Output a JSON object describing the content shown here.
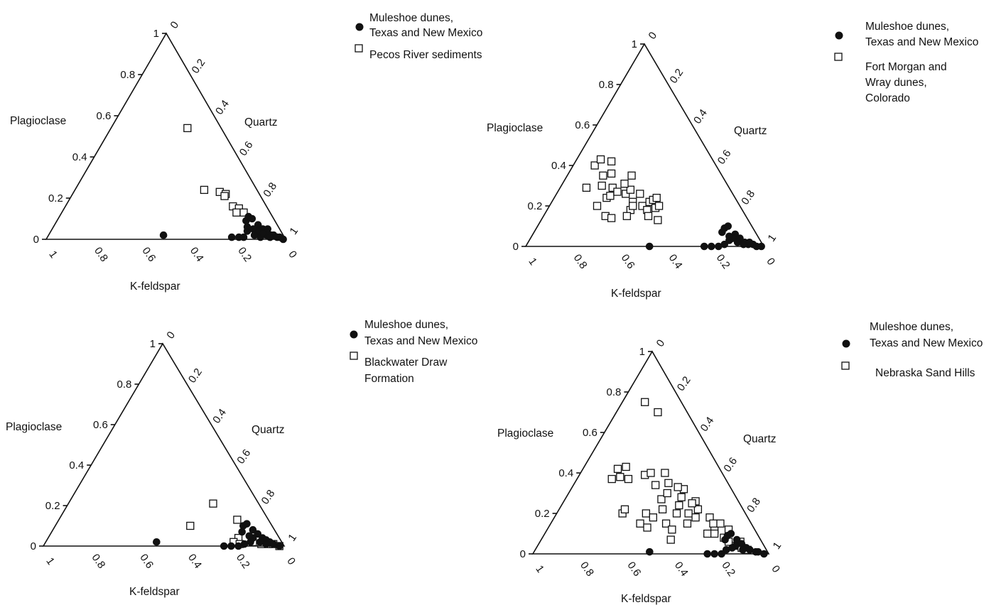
{
  "chart_data": [
    {
      "type": "scatter",
      "subtype": "ternary",
      "axes": {
        "left": {
          "label": "Plagioclase",
          "ticks": [
            "0",
            "0.2",
            "0.4",
            "0.6",
            "0.8",
            "1"
          ]
        },
        "right": {
          "label": "Quartz",
          "ticks": [
            "0",
            "0.2",
            "0.4",
            "0.6",
            "0.8",
            "1"
          ]
        },
        "bottom": {
          "label": "K-feldspar",
          "ticks": [
            "1",
            "0.8",
            "0.6",
            "0.4",
            "0.2",
            "0"
          ]
        }
      },
      "legend": [
        {
          "label_lines": [
            "Muleshoe dunes,",
            "Texas and New Mexico"
          ],
          "marker": "filled-circle"
        },
        {
          "label_lines": [
            "Pecos River sediments"
          ],
          "marker": "open-square"
        }
      ],
      "series": [
        {
          "name": "Muleshoe dunes, Texas and New Mexico",
          "marker": "filled-circle",
          "points": [
            [
              0.5,
              0.02
            ],
            [
              0.22,
              0.01
            ],
            [
              0.19,
              0.01
            ],
            [
              0.17,
              0.01
            ],
            [
              0.14,
              0.04
            ],
            [
              0.12,
              0.09
            ],
            [
              0.1,
              0.11
            ],
            [
              0.09,
              0.1
            ],
            [
              0.08,
              0.07
            ],
            [
              0.07,
              0.05
            ],
            [
              0.06,
              0.03
            ],
            [
              0.05,
              0.02
            ],
            [
              0.04,
              0.02
            ],
            [
              0.03,
              0.01
            ],
            [
              0.02,
              0.01
            ],
            [
              0.01,
              0.0
            ],
            [
              0.11,
              0.05
            ],
            [
              0.09,
              0.04
            ],
            [
              0.07,
              0.02
            ],
            [
              0.12,
              0.02
            ],
            [
              0.1,
              0.01
            ],
            [
              0.06,
              0.01
            ],
            [
              0.13,
              0.06
            ],
            [
              0.08,
              0.03
            ],
            [
              0.05,
              0.05
            ]
          ]
        },
        {
          "name": "Pecos River sediments",
          "marker": "open-square",
          "points": [
            [
              0.14,
              0.54
            ],
            [
              0.22,
              0.24
            ],
            [
              0.16,
              0.23
            ],
            [
              0.14,
              0.22
            ],
            [
              0.15,
              0.21
            ],
            [
              0.14,
              0.16
            ],
            [
              0.12,
              0.15
            ],
            [
              0.14,
              0.13
            ],
            [
              0.11,
              0.13
            ]
          ]
        }
      ]
    },
    {
      "type": "scatter",
      "subtype": "ternary",
      "axes": {
        "left": {
          "label": "Plagioclase",
          "ticks": [
            "0",
            "0.2",
            "0.4",
            "0.6",
            "0.8",
            "1"
          ]
        },
        "right": {
          "label": "Quartz",
          "ticks": [
            "0",
            "0.2",
            "0.4",
            "0.6",
            "0.8",
            "1"
          ]
        },
        "bottom": {
          "label": "K-feldspar",
          "ticks": [
            "1",
            "0.8",
            "0.6",
            "0.4",
            "0.2",
            "0"
          ]
        }
      },
      "legend": [
        {
          "label_lines": [
            "Muleshoe dunes,",
            "Texas and New Mexico"
          ],
          "marker": "filled-circle"
        },
        {
          "label_lines": [
            "Fort Morgan and",
            "Wray dunes,",
            "Colorado"
          ],
          "marker": "open-square"
        }
      ],
      "series": [
        {
          "name": "Muleshoe dunes, Texas and New Mexico",
          "marker": "filled-circle",
          "points": [
            [
              0.48,
              0.0
            ],
            [
              0.25,
              0.0
            ],
            [
              0.22,
              0.0
            ],
            [
              0.19,
              0.0
            ],
            [
              0.16,
              0.01
            ],
            [
              0.14,
              0.07
            ],
            [
              0.12,
              0.09
            ],
            [
              0.1,
              0.1
            ],
            [
              0.09,
              0.06
            ],
            [
              0.08,
              0.04
            ],
            [
              0.07,
              0.02
            ],
            [
              0.06,
              0.01
            ],
            [
              0.04,
              0.01
            ],
            [
              0.03,
              0.0
            ],
            [
              0.01,
              0.0
            ],
            [
              0.11,
              0.04
            ],
            [
              0.13,
              0.03
            ],
            [
              0.1,
              0.02
            ],
            [
              0.08,
              0.01
            ],
            [
              0.05,
              0.02
            ],
            [
              0.12,
              0.05
            ]
          ]
        },
        {
          "name": "Fort Morgan and Wray dunes, Colorado",
          "marker": "open-square",
          "points": [
            [
              0.59,
              0.15
            ],
            [
              0.57,
              0.14
            ],
            [
              0.6,
              0.2
            ],
            [
              0.6,
              0.29
            ],
            [
              0.54,
              0.24
            ],
            [
              0.53,
              0.3
            ],
            [
              0.52,
              0.25
            ],
            [
              0.51,
              0.4
            ],
            [
              0.5,
              0.35
            ],
            [
              0.49,
              0.29
            ],
            [
              0.48,
              0.27
            ],
            [
              0.47,
              0.43
            ],
            [
              0.46,
              0.36
            ],
            [
              0.45,
              0.26
            ],
            [
              0.44,
              0.22
            ],
            [
              0.43,
              0.42
            ],
            [
              0.42,
              0.28
            ],
            [
              0.41,
              0.2
            ],
            [
              0.4,
              0.18
            ],
            [
              0.39,
              0.26
            ],
            [
              0.38,
              0.35
            ],
            [
              0.37,
              0.22
            ],
            [
              0.36,
              0.19
            ],
            [
              0.35,
              0.23
            ],
            [
              0.34,
              0.2
            ],
            [
              0.33,
              0.24
            ],
            [
              0.38,
              0.13
            ],
            [
              0.41,
              0.15
            ],
            [
              0.47,
              0.18
            ],
            [
              0.5,
              0.15
            ],
            [
              0.43,
              0.31
            ],
            [
              0.45,
              0.2
            ]
          ]
        }
      ]
    },
    {
      "type": "scatter",
      "subtype": "ternary",
      "axes": {
        "left": {
          "label": "Plagioclase",
          "ticks": [
            "0",
            "0.2",
            "0.4",
            "0.6",
            "0.8",
            "1"
          ]
        },
        "right": {
          "label": "Quartz",
          "ticks": [
            "0",
            "0.2",
            "0.4",
            "0.6",
            "0.8",
            "1"
          ]
        },
        "bottom": {
          "label": "K-feldspar",
          "ticks": [
            "1",
            "0.8",
            "0.6",
            "0.4",
            "0.2",
            "0"
          ]
        }
      },
      "legend": [
        {
          "label_lines": [
            "Muleshoe dunes,",
            "Texas and New Mexico"
          ],
          "marker": "filled-circle"
        },
        {
          "label_lines": [
            "Blackwater Draw",
            "Formation"
          ],
          "marker": "open-square"
        }
      ],
      "series": [
        {
          "name": "Muleshoe dunes, Texas and New Mexico",
          "marker": "filled-circle",
          "points": [
            [
              0.52,
              0.02
            ],
            [
              0.25,
              0.0
            ],
            [
              0.22,
              0.0
            ],
            [
              0.19,
              0.0
            ],
            [
              0.16,
              0.01
            ],
            [
              0.14,
              0.07
            ],
            [
              0.12,
              0.1
            ],
            [
              0.1,
              0.11
            ],
            [
              0.09,
              0.08
            ],
            [
              0.08,
              0.06
            ],
            [
              0.07,
              0.04
            ],
            [
              0.06,
              0.03
            ],
            [
              0.05,
              0.02
            ],
            [
              0.04,
              0.01
            ],
            [
              0.02,
              0.0
            ],
            [
              0.11,
              0.04
            ],
            [
              0.13,
              0.02
            ],
            [
              0.09,
              0.02
            ],
            [
              0.07,
              0.01
            ],
            [
              0.12,
              0.05
            ]
          ]
        },
        {
          "name": "Blackwater Draw Formation",
          "marker": "open-square",
          "points": [
            [
              0.34,
              0.1
            ],
            [
              0.19,
              0.21
            ],
            [
              0.13,
              0.13
            ],
            [
              0.17,
              0.04
            ],
            [
              0.2,
              0.02
            ],
            [
              0.18,
              0.01
            ],
            [
              0.12,
              0.02
            ],
            [
              0.09,
              0.01
            ],
            [
              0.06,
              0.01
            ],
            [
              0.04,
              0.01
            ],
            [
              0.02,
              0.0
            ]
          ]
        }
      ]
    },
    {
      "type": "scatter",
      "subtype": "ternary",
      "axes": {
        "left": {
          "label": "Plagioclase",
          "ticks": [
            "0",
            "0.2",
            "0.4",
            "0.6",
            "0.8",
            "1"
          ]
        },
        "right": {
          "label": "Quartz",
          "ticks": [
            "0",
            "0.2",
            "0.4",
            "0.6",
            "0.8",
            "1"
          ]
        },
        "bottom": {
          "label": "K-feldspar",
          "ticks": [
            "1",
            "0.8",
            "0.6",
            "0.4",
            "0.2",
            "0"
          ]
        }
      },
      "legend": [
        {
          "label_lines": [
            "Muleshoe dunes,",
            "Texas and New Mexico"
          ],
          "marker": "filled-circle"
        },
        {
          "label_lines": [
            "Nebraska Sand Hills"
          ],
          "marker": "open-square"
        }
      ],
      "series": [
        {
          "name": "Muleshoe dunes, Texas and New Mexico",
          "marker": "filled-circle",
          "points": [
            [
              0.5,
              0.01
            ],
            [
              0.26,
              0.0
            ],
            [
              0.23,
              0.0
            ],
            [
              0.2,
              0.0
            ],
            [
              0.17,
              0.02
            ],
            [
              0.15,
              0.07
            ],
            [
              0.13,
              0.09
            ],
            [
              0.11,
              0.1
            ],
            [
              0.1,
              0.07
            ],
            [
              0.09,
              0.05
            ],
            [
              0.08,
              0.03
            ],
            [
              0.07,
              0.02
            ],
            [
              0.05,
              0.01
            ],
            [
              0.04,
              0.01
            ],
            [
              0.02,
              0.0
            ],
            [
              0.12,
              0.04
            ],
            [
              0.14,
              0.03
            ],
            [
              0.1,
              0.02
            ]
          ]
        },
        {
          "name": "Nebraska Sand Hills",
          "marker": "open-square",
          "points": [
            [
              0.15,
              0.75
            ],
            [
              0.12,
              0.7
            ],
            [
              0.52,
              0.2
            ],
            [
              0.5,
              0.22
            ],
            [
              0.48,
              0.37
            ],
            [
              0.47,
              0.15
            ],
            [
              0.45,
              0.13
            ],
            [
              0.44,
              0.38
            ],
            [
              0.43,
              0.42
            ],
            [
              0.42,
              0.2
            ],
            [
              0.41,
              0.37
            ],
            [
              0.4,
              0.18
            ],
            [
              0.39,
              0.43
            ],
            [
              0.38,
              0.07
            ],
            [
              0.36,
              0.15
            ],
            [
              0.35,
              0.12
            ],
            [
              0.34,
              0.22
            ],
            [
              0.33,
              0.39
            ],
            [
              0.32,
              0.27
            ],
            [
              0.31,
              0.34
            ],
            [
              0.3,
              0.4
            ],
            [
              0.29,
              0.2
            ],
            [
              0.28,
              0.3
            ],
            [
              0.27,
              0.15
            ],
            [
              0.26,
              0.24
            ],
            [
              0.25,
              0.35
            ],
            [
              0.24,
              0.2
            ],
            [
              0.23,
              0.28
            ],
            [
              0.22,
              0.18
            ],
            [
              0.21,
              0.1
            ],
            [
              0.2,
              0.32
            ],
            [
              0.19,
              0.22
            ],
            [
              0.18,
              0.26
            ],
            [
              0.17,
              0.12
            ],
            [
              0.16,
              0.18
            ],
            [
              0.15,
              0.08
            ],
            [
              0.14,
              0.06
            ],
            [
              0.13,
              0.15
            ],
            [
              0.12,
              0.04
            ],
            [
              0.11,
              0.12
            ],
            [
              0.1,
              0.03
            ],
            [
              0.09,
              0.06
            ],
            [
              0.08,
              0.02
            ],
            [
              0.24,
              0.4
            ],
            [
              0.22,
              0.33
            ],
            [
              0.2,
              0.25
            ],
            [
              0.18,
              0.1
            ],
            [
              0.16,
              0.15
            ]
          ]
        }
      ]
    }
  ]
}
